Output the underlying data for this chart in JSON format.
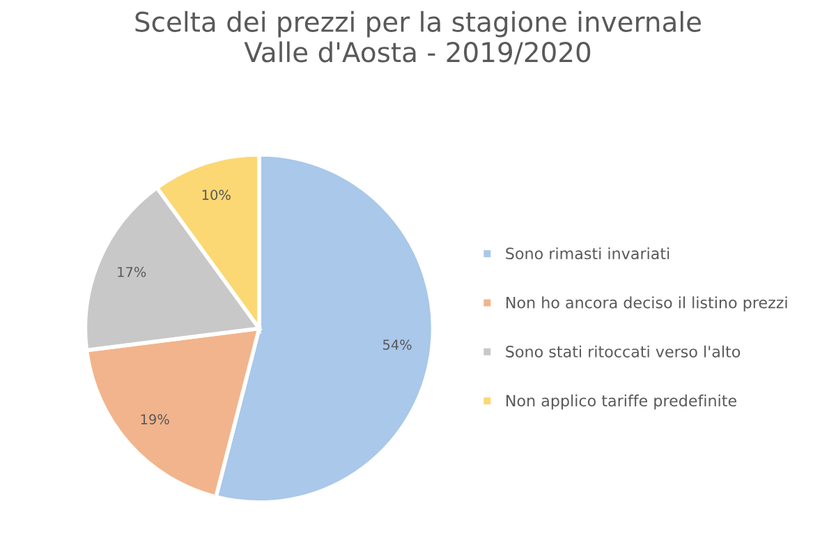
{
  "chart_data": {
    "type": "pie",
    "title": "Scelta dei prezzi per la stagione invernale\nValle d'Aosta - 2019/2020",
    "categories": [
      "Sono rimasti invariati",
      "Non ho ancora deciso il listino prezzi",
      "Sono stati ritoccati verso l'alto",
      "Non applico tariffe predefinite"
    ],
    "values": [
      54,
      19,
      17,
      10
    ],
    "colors": [
      "#a9c8ea",
      "#f2b48c",
      "#c8c8c8",
      "#fbd874"
    ],
    "value_labels": [
      "54%",
      "19%",
      "17%",
      "10%"
    ],
    "legend": "right"
  }
}
